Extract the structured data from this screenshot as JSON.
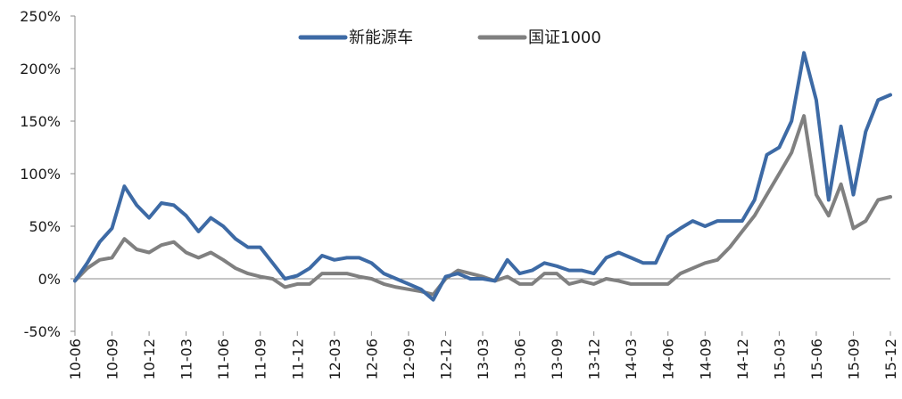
{
  "chart_data": {
    "type": "line",
    "title": "",
    "xlabel": "",
    "ylabel": "",
    "ylim": [
      -50,
      250
    ],
    "y_ticks": [
      -50,
      0,
      50,
      100,
      150,
      200,
      250
    ],
    "y_tick_labels": [
      "-50%",
      "0%",
      "50%",
      "100%",
      "150%",
      "200%",
      "250%"
    ],
    "x_tick_labels": [
      "10-06",
      "10-09",
      "10-12",
      "11-03",
      "11-06",
      "11-09",
      "11-12",
      "12-03",
      "12-06",
      "12-09",
      "12-12",
      "13-03",
      "13-06",
      "13-09",
      "13-12",
      "14-03",
      "14-06",
      "14-09",
      "14-12",
      "15-03",
      "15-06",
      "15-09",
      "15-12"
    ],
    "grid": false,
    "legend_position": "top-center",
    "series": [
      {
        "name": "新能源车",
        "color": "#3d6aa5",
        "x": [
          "10-06",
          "10-07",
          "10-08",
          "10-09",
          "10-10",
          "10-11",
          "10-12",
          "11-01",
          "11-02",
          "11-03",
          "11-04",
          "11-05",
          "11-06",
          "11-07",
          "11-08",
          "11-09",
          "11-10",
          "11-11",
          "11-12",
          "12-01",
          "12-02",
          "12-03",
          "12-04",
          "12-05",
          "12-06",
          "12-07",
          "12-08",
          "12-09",
          "12-10",
          "12-11",
          "12-12",
          "13-01",
          "13-02",
          "13-03",
          "13-04",
          "13-05",
          "13-06",
          "13-07",
          "13-08",
          "13-09",
          "13-10",
          "13-11",
          "13-12",
          "14-01",
          "14-02",
          "14-03",
          "14-04",
          "14-05",
          "14-06",
          "14-07",
          "14-08",
          "14-09",
          "14-10",
          "14-11",
          "14-12",
          "15-01",
          "15-02",
          "15-03",
          "15-04",
          "15-05",
          "15-06",
          "15-07",
          "15-08",
          "15-09",
          "15-10",
          "15-11",
          "15-12"
        ],
        "values": [
          -2,
          15,
          35,
          48,
          88,
          70,
          58,
          72,
          70,
          60,
          45,
          58,
          50,
          38,
          30,
          30,
          15,
          0,
          3,
          10,
          22,
          18,
          20,
          20,
          15,
          5,
          0,
          -5,
          -10,
          -20,
          2,
          5,
          0,
          0,
          -2,
          18,
          5,
          8,
          15,
          12,
          8,
          8,
          5,
          20,
          25,
          20,
          15,
          15,
          40,
          48,
          55,
          50,
          55,
          55,
          55,
          75,
          118,
          125,
          150,
          215,
          170,
          75,
          145,
          80,
          140,
          170,
          175
        ]
      },
      {
        "name": "国证1000",
        "color": "#808080",
        "x": [
          "10-06",
          "10-07",
          "10-08",
          "10-09",
          "10-10",
          "10-11",
          "10-12",
          "11-01",
          "11-02",
          "11-03",
          "11-04",
          "11-05",
          "11-06",
          "11-07",
          "11-08",
          "11-09",
          "11-10",
          "11-11",
          "11-12",
          "12-01",
          "12-02",
          "12-03",
          "12-04",
          "12-05",
          "12-06",
          "12-07",
          "12-08",
          "12-09",
          "12-10",
          "12-11",
          "12-12",
          "13-01",
          "13-02",
          "13-03",
          "13-04",
          "13-05",
          "13-06",
          "13-07",
          "13-08",
          "13-09",
          "13-10",
          "13-11",
          "13-12",
          "14-01",
          "14-02",
          "14-03",
          "14-04",
          "14-05",
          "14-06",
          "14-07",
          "14-08",
          "14-09",
          "14-10",
          "14-11",
          "14-12",
          "15-01",
          "15-02",
          "15-03",
          "15-04",
          "15-05",
          "15-06",
          "15-07",
          "15-08",
          "15-09",
          "15-10",
          "15-11",
          "15-12"
        ],
        "values": [
          -2,
          10,
          18,
          20,
          38,
          28,
          25,
          32,
          35,
          25,
          20,
          25,
          18,
          10,
          5,
          2,
          0,
          -8,
          -5,
          -5,
          5,
          5,
          5,
          2,
          0,
          -5,
          -8,
          -10,
          -12,
          -15,
          0,
          8,
          5,
          2,
          -2,
          2,
          -5,
          -5,
          5,
          5,
          -5,
          -2,
          -5,
          0,
          -2,
          -5,
          -5,
          -5,
          -5,
          5,
          10,
          15,
          18,
          30,
          45,
          60,
          80,
          100,
          120,
          155,
          80,
          60,
          90,
          48,
          55,
          75,
          78
        ]
      }
    ]
  }
}
